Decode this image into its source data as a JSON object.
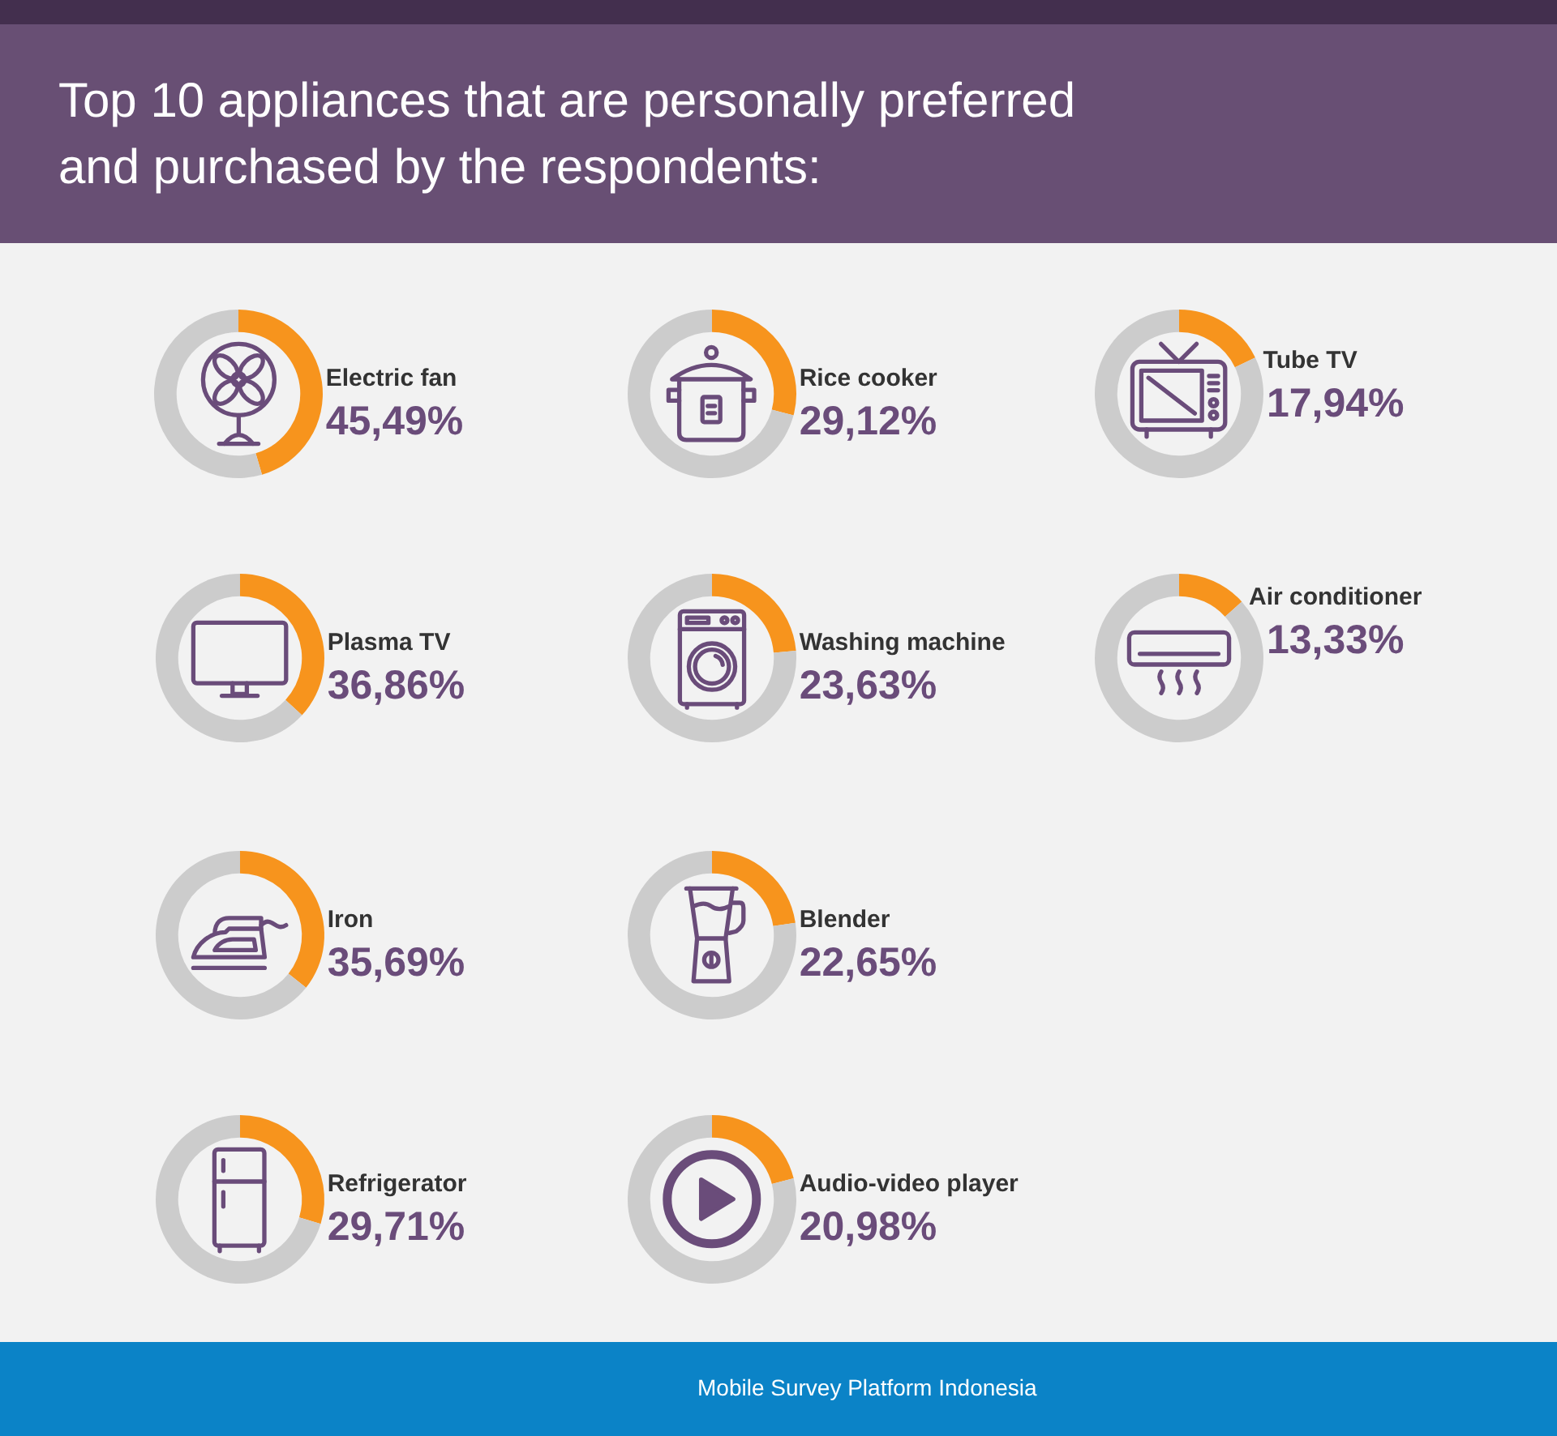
{
  "chart_data": [
    {
      "type": "other",
      "title": "Top 10 appliances that are personally preferred and purchased by the respondents:"
    },
    {
      "type": "donut",
      "categories": [
        "Electric fan",
        null
      ],
      "values": [
        45.49,
        54.51
      ],
      "colors": [
        "#f7941d",
        "#cccccc"
      ],
      "value_labels": [
        "45,49%",
        null
      ]
    },
    {
      "type": "donut",
      "categories": [
        "Rice cooker",
        null
      ],
      "values": [
        29.12,
        70.88
      ],
      "colors": [
        "#f7941d",
        "#cccccc"
      ],
      "value_labels": [
        "29,12%",
        null
      ]
    },
    {
      "type": "donut",
      "categories": [
        "Tube TV",
        null
      ],
      "values": [
        17.94,
        82.06
      ],
      "colors": [
        "#f7941d",
        "#cccccc"
      ],
      "value_labels": [
        "17,94%",
        null
      ]
    },
    {
      "type": "donut",
      "categories": [
        "Plasma TV",
        null
      ],
      "values": [
        36.86,
        63.14
      ],
      "colors": [
        "#f7941d",
        "#cccccc"
      ],
      "value_labels": [
        "36,86%",
        null
      ]
    },
    {
      "type": "donut",
      "categories": [
        "Washing machine",
        null
      ],
      "values": [
        23.63,
        76.37
      ],
      "colors": [
        "#f7941d",
        "#cccccc"
      ],
      "value_labels": [
        "23,63%",
        null
      ]
    },
    {
      "type": "donut",
      "categories": [
        "Air conditioner",
        null
      ],
      "values": [
        13.33,
        86.67
      ],
      "colors": [
        "#f7941d",
        "#cccccc"
      ],
      "value_labels": [
        "13,33%",
        null
      ]
    },
    {
      "type": "donut",
      "categories": [
        "Iron",
        null
      ],
      "values": [
        35.69,
        64.31
      ],
      "colors": [
        "#f7941d",
        "#cccccc"
      ],
      "value_labels": [
        "35,69%",
        null
      ]
    },
    {
      "type": "donut",
      "categories": [
        "Blender",
        null
      ],
      "values": [
        22.65,
        77.35
      ],
      "colors": [
        "#f7941d",
        "#cccccc"
      ],
      "value_labels": [
        "22,65%",
        null
      ]
    },
    {
      "type": "donut",
      "categories": [
        "Refrigerator",
        null
      ],
      "values": [
        29.71,
        70.29
      ],
      "colors": [
        "#f7941d",
        "#cccccc"
      ],
      "value_labels": [
        "29,71%",
        null
      ]
    },
    {
      "type": "donut",
      "categories": [
        "Audio-video player",
        null
      ],
      "values": [
        20.98,
        79.02
      ],
      "colors": [
        "#f7941d",
        "#cccccc"
      ],
      "value_labels": [
        "20,98%",
        null
      ]
    },
    {
      "type": "other",
      "annotations": [
        "Mobile Survey Platform Indonesia"
      ]
    }
  ]
}
